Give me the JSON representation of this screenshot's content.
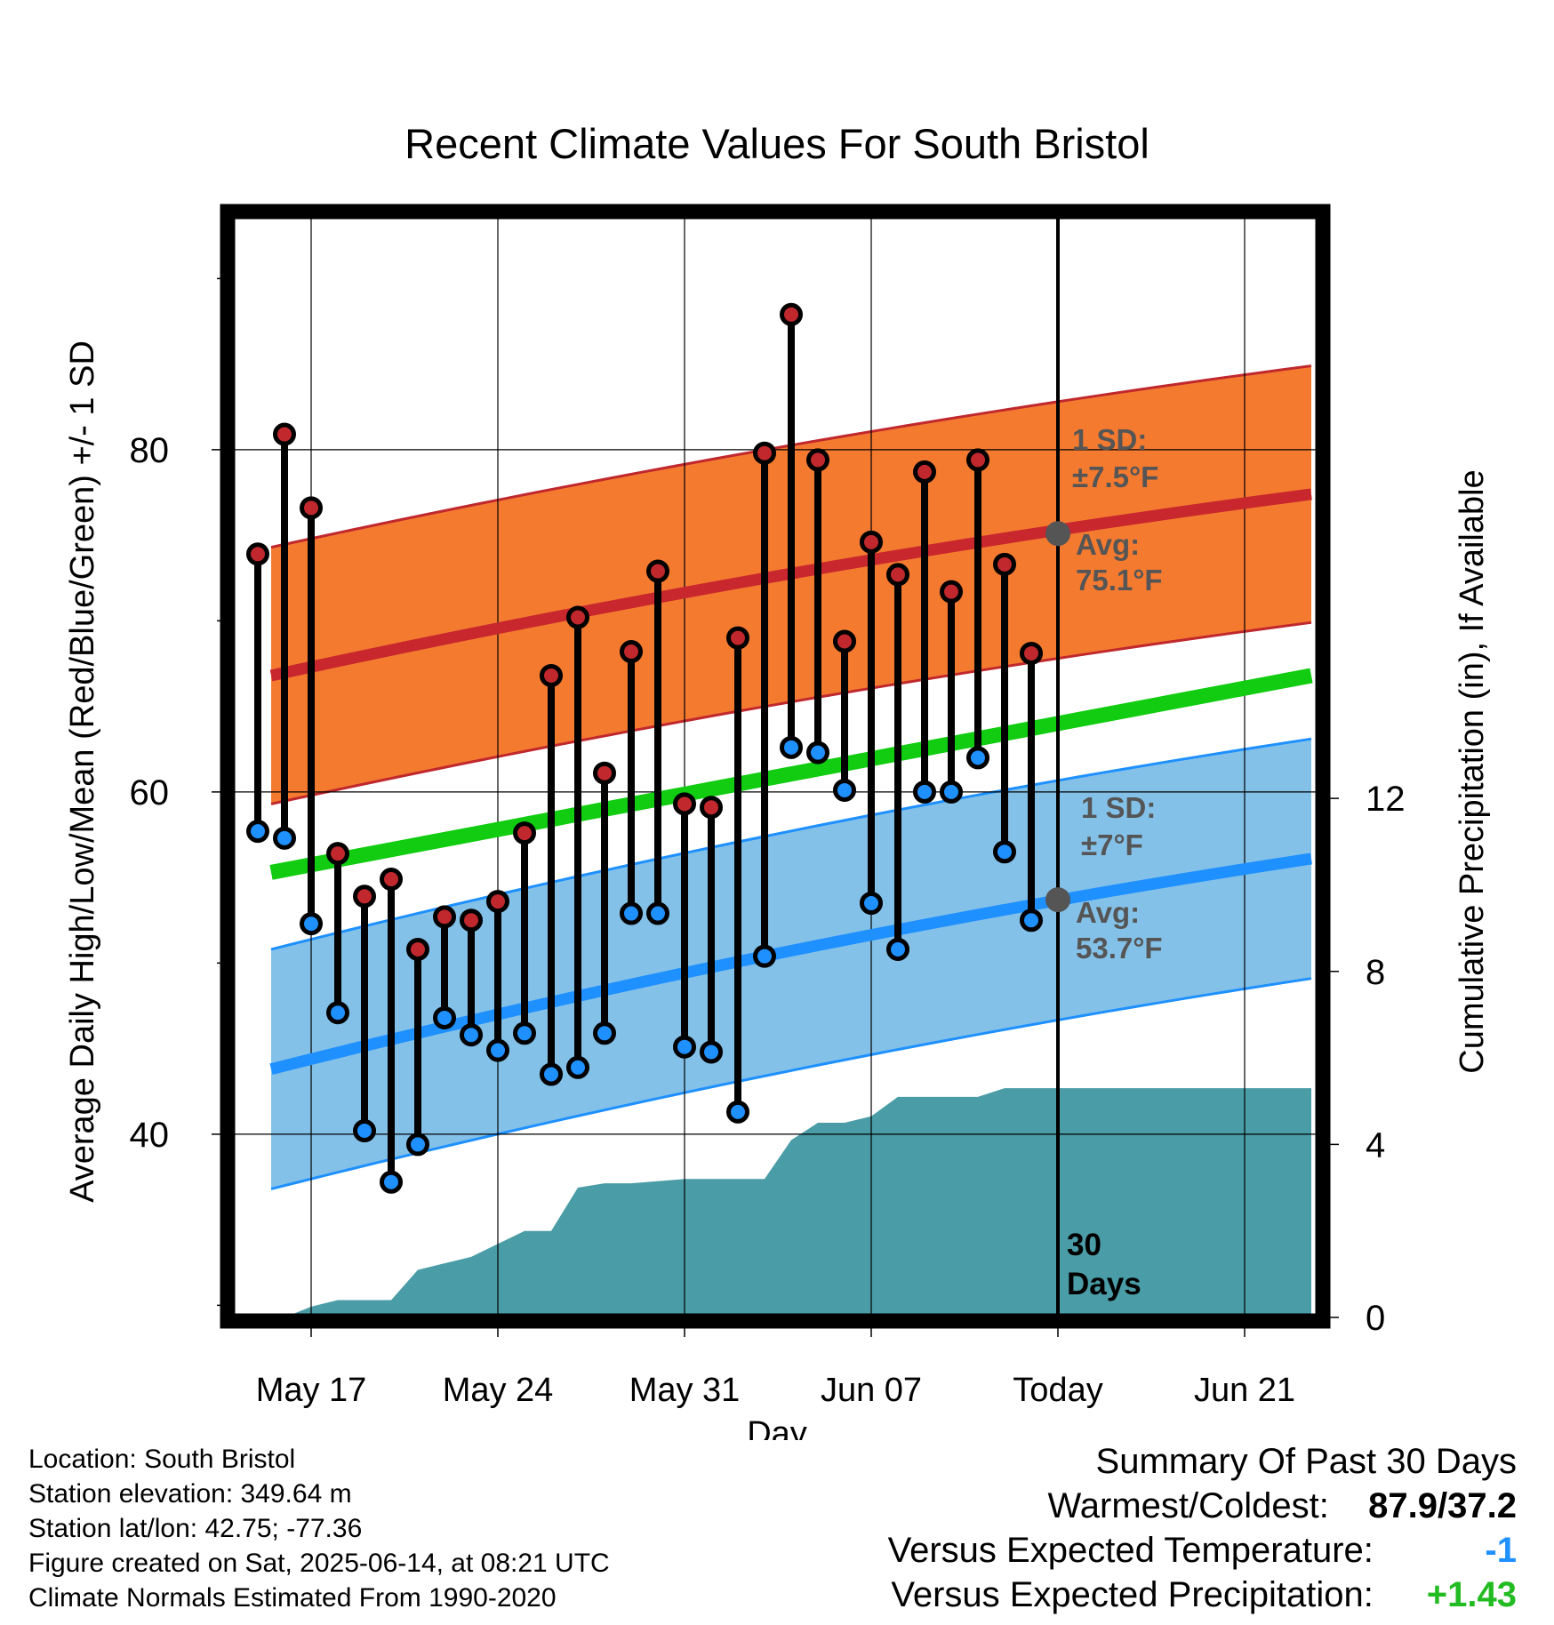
{
  "chart_data": {
    "type": "line",
    "title": "Recent Climate Values For South Bristol",
    "xlabel": "Day",
    "ylabel_left": "Average Daily High/Low/Mean (Red/Blue/Green) +/- 1 SD",
    "ylabel_right": "Cumulative Precipitation (in), If Available",
    "x_tick_labels": [
      "May 17",
      "May 24",
      "May 31",
      "Jun 07",
      "Today",
      "Jun 21"
    ],
    "y_left_ticks": [
      "40",
      "60",
      "80"
    ],
    "y_right_ticks": [
      "0",
      "4",
      "8",
      "12"
    ],
    "ylim_left": [
      29.5,
      93.5
    ],
    "ylim_right": [
      0,
      24.5
    ],
    "days_window_label": [
      "30",
      "Days"
    ],
    "normals": {
      "high_sd_label": [
        "1 SD:",
        "±7.5°F"
      ],
      "high_avg_label": [
        "Avg:",
        "75.1°F"
      ],
      "low_sd_label": [
        "1 SD:",
        "±7°F"
      ],
      "low_avg_label": [
        "Avg:",
        "53.7°F"
      ],
      "high_mean": [
        66.8,
        77.4
      ],
      "high_sd": 7.5,
      "low_mean": [
        43.8,
        56.1
      ],
      "low_sd": 7,
      "mean": [
        55.3,
        66.8
      ],
      "high_today": 75.1,
      "low_today": 53.7
    },
    "series": [
      {
        "name": "High",
        "color": "#c0282d",
        "values": [
          73.9,
          80.9,
          76.6,
          56.4,
          53.9,
          54.9,
          50.8,
          52.7,
          52.5,
          53.6,
          57.6,
          66.8,
          70.2,
          61.1,
          68.2,
          72.9,
          59.3,
          59.1,
          69.0,
          79.8,
          87.9,
          79.4,
          68.8,
          74.6,
          72.7,
          78.7,
          71.7,
          79.4,
          73.3,
          68.1
        ]
      },
      {
        "name": "Low",
        "color": "#1e90ff",
        "values": [
          57.7,
          57.3,
          52.3,
          47.1,
          40.2,
          37.2,
          39.4,
          46.8,
          45.8,
          44.9,
          45.9,
          43.5,
          43.9,
          45.9,
          52.9,
          52.9,
          45.1,
          44.8,
          41.3,
          50.4,
          62.6,
          62.3,
          60.1,
          53.5,
          50.8,
          60.0,
          60.0,
          62.0,
          56.5,
          52.5
        ]
      },
      {
        "name": "Cumulative Precipitation",
        "color": "#4a9ca6",
        "x_days": [
          -29.5,
          -29,
          -28,
          -27,
          -26,
          -25,
          -24,
          -23,
          -22,
          -21,
          -20,
          -19,
          -18,
          -17,
          -16,
          -15,
          -14,
          -13,
          -12,
          -11,
          -10,
          -9,
          -8,
          -7,
          -6,
          -5,
          -4,
          -3,
          -2,
          -1,
          0,
          9.5
        ],
        "values": [
          0,
          0,
          0.25,
          0.4,
          0.4,
          0.4,
          1.1,
          1.25,
          1.4,
          1.7,
          2.0,
          2.0,
          3.0,
          3.1,
          3.1,
          3.15,
          3.2,
          3.2,
          3.2,
          3.2,
          4.1,
          4.5,
          4.5,
          4.65,
          5.1,
          5.1,
          5.1,
          5.1,
          5.3,
          5.3,
          5.3,
          5.3
        ]
      }
    ]
  },
  "footer": {
    "location": "Location: South Bristol",
    "elevation": "Station elevation: 349.64 m",
    "latlon": "Station lat/lon: 42.75; -77.36",
    "created": "Figure created on Sat, 2025-06-14, at 08:21 UTC",
    "normals_period": "Climate Normals Estimated From 1990-2020"
  },
  "summary": {
    "title": "Summary Of Past 30 Days",
    "warmest_coldest_label": "Warmest/Coldest:",
    "warmest_coldest_value": "87.9/37.2",
    "temp_label": "Versus Expected Temperature:",
    "temp_value": "-1",
    "temp_color": "#1e90ff",
    "precip_label": "Versus Expected Precipitation:",
    "precip_value": "+1.43",
    "precip_color": "#22bb22"
  }
}
